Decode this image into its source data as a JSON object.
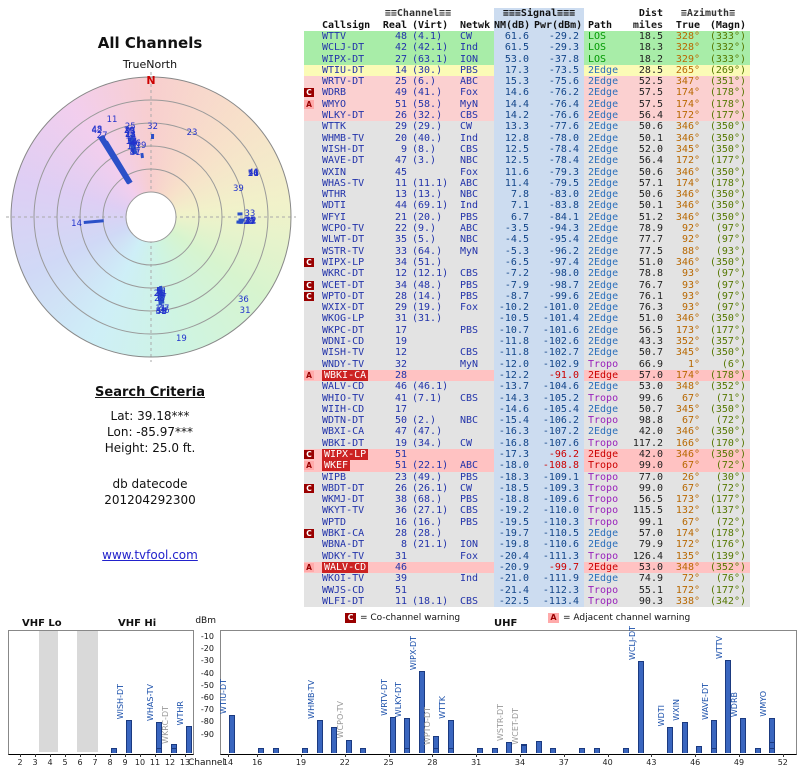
{
  "radar": {
    "title": "All Channels",
    "north_label": "TrueNorth",
    "north_marker": "N"
  },
  "search": {
    "heading": "Search Criteria",
    "lines": [
      "Lat: 39.18***",
      "Lon: -85.97***",
      "Height: 25.0 ft."
    ],
    "datecode_label": "db datecode",
    "datecode": "201204292300",
    "link": "www.tvfool.com"
  },
  "table": {
    "group_header": {
      "channel": "≡≡Channel≡≡",
      "signal": "≡≡≡Signal≡≡≡",
      "dist": "Dist",
      "azimuth": "≡Azimuth≡"
    },
    "header": {
      "callsign": "Callsign",
      "real": "Real",
      "virt": "(Virt)",
      "netwk": "Netwk",
      "nm": "NM(dB)",
      "pwr": "Pwr(dBm)",
      "path": "Path",
      "miles": "miles",
      "true": "True",
      "magn": "(Magn)"
    },
    "row_fields": [
      "warn",
      "callsign",
      "real",
      "virt",
      "netwk",
      "nm",
      "pwr",
      "path",
      "dist",
      "true_az",
      "magn",
      "tier",
      "alert"
    ],
    "rows": [
      [
        "",
        "WTTV",
        "48",
        "(4.1)",
        "CW",
        "61.6",
        "-29.2",
        "LOS",
        "18.5",
        "328°",
        "(333°)",
        "green",
        0
      ],
      [
        "",
        "WCLJ-DT",
        "42",
        "(42.1)",
        "Ind",
        "61.5",
        "-29.3",
        "LOS",
        "18.3",
        "328°",
        "(332°)",
        "green",
        0
      ],
      [
        "",
        "WIPX-DT",
        "27",
        "(63.1)",
        "ION",
        "53.0",
        "-37.8",
        "LOS",
        "18.2",
        "329°",
        "(333°)",
        "green",
        0
      ],
      [
        "",
        "WTIU-DT",
        "14",
        "(30.)",
        "PBS",
        "17.3",
        "-73.5",
        "2Edge",
        "28.5",
        "265°",
        "(269°)",
        "yellow",
        0
      ],
      [
        "",
        "WRTV-DT",
        "25",
        "(6.)",
        "ABC",
        "15.3",
        "-75.6",
        "2Edge",
        "52.5",
        "347°",
        "(351°)",
        "pink",
        0
      ],
      [
        "C",
        "WDRB",
        "49",
        "(41.)",
        "Fox",
        "14.6",
        "-76.2",
        "2Edge",
        "57.5",
        "174°",
        "(178°)",
        "pink",
        0
      ],
      [
        "A",
        "WMYO",
        "51",
        "(58.)",
        "MyN",
        "14.4",
        "-76.4",
        "2Edge",
        "57.5",
        "174°",
        "(178°)",
        "pink",
        0
      ],
      [
        "",
        "WLKY-DT",
        "26",
        "(32.)",
        "CBS",
        "14.2",
        "-76.6",
        "2Edge",
        "56.4",
        "172°",
        "(177°)",
        "pink",
        0
      ],
      [
        "",
        "WTTK",
        "29",
        "(29.)",
        "CW",
        "13.3",
        "-77.6",
        "2Edge",
        "50.6",
        "346°",
        "(350°)",
        "gray",
        0
      ],
      [
        "",
        "WHMB-TV",
        "20",
        "(40.)",
        "Ind",
        "12.8",
        "-78.0",
        "2Edge",
        "50.1",
        "346°",
        "(350°)",
        "gray",
        0
      ],
      [
        "",
        "WISH-DT",
        "9",
        "(8.)",
        "CBS",
        "12.5",
        "-78.4",
        "2Edge",
        "52.0",
        "345°",
        "(350°)",
        "gray",
        0
      ],
      [
        "",
        "WAVE-DT",
        "47",
        "(3.)",
        "NBC",
        "12.5",
        "-78.4",
        "2Edge",
        "56.4",
        "172°",
        "(177°)",
        "gray",
        0
      ],
      [
        "",
        "WXIN",
        "45",
        "",
        "Fox",
        "11.6",
        "-79.3",
        "2Edge",
        "50.6",
        "346°",
        "(350°)",
        "gray",
        0
      ],
      [
        "",
        "WHAS-TV",
        "11",
        "(11.1)",
        "ABC",
        "11.4",
        "-79.5",
        "2Edge",
        "57.1",
        "174°",
        "(178°)",
        "gray",
        0
      ],
      [
        "",
        "WTHR",
        "13",
        "(13.)",
        "NBC",
        "7.8",
        "-83.0",
        "2Edge",
        "50.6",
        "346°",
        "(350°)",
        "gray",
        0
      ],
      [
        "",
        "WDTI",
        "44",
        "(69.1)",
        "Ind",
        "7.1",
        "-83.8",
        "2Edge",
        "50.1",
        "346°",
        "(350°)",
        "gray",
        0
      ],
      [
        "",
        "WFYI",
        "21",
        "(20.)",
        "PBS",
        "6.7",
        "-84.1",
        "2Edge",
        "51.2",
        "346°",
        "(350°)",
        "gray",
        0
      ],
      [
        "",
        "WCPO-TV",
        "22",
        "(9.)",
        "ABC",
        "-3.5",
        "-94.3",
        "2Edge",
        "78.9",
        "92°",
        "(97°)",
        "gray",
        0
      ],
      [
        "",
        "WLWT-DT",
        "35",
        "(5.)",
        "NBC",
        "-4.5",
        "-95.4",
        "2Edge",
        "77.7",
        "92°",
        "(97°)",
        "gray",
        0
      ],
      [
        "",
        "WSTR-TV",
        "33",
        "(64.)",
        "MyN",
        "-5.3",
        "-96.2",
        "2Edge",
        "77.5",
        "88°",
        "(93°)",
        "gray",
        0
      ],
      [
        "C",
        "WIPX-LP",
        "34",
        "(51.)",
        "",
        "-6.5",
        "-97.4",
        "2Edge",
        "51.0",
        "346°",
        "(350°)",
        "gray",
        0
      ],
      [
        "",
        "WKRC-DT",
        "12",
        "(12.1)",
        "CBS",
        "-7.2",
        "-98.0",
        "2Edge",
        "78.8",
        "93°",
        "(97°)",
        "gray",
        0
      ],
      [
        "C",
        "WCET-DT",
        "34",
        "(48.)",
        "PBS",
        "-7.9",
        "-98.7",
        "2Edge",
        "76.7",
        "93°",
        "(97°)",
        "gray",
        0
      ],
      [
        "C",
        "WPTO-DT",
        "28",
        "(14.)",
        "PBS",
        "-8.7",
        "-99.6",
        "2Edge",
        "76.1",
        "93°",
        "(97°)",
        "gray",
        0
      ],
      [
        "",
        "WXIX-DT",
        "29",
        "(19.)",
        "Fox",
        "-10.2",
        "-101.0",
        "2Edge",
        "76.3",
        "93°",
        "(97°)",
        "gray",
        0
      ],
      [
        "",
        "WKOG-LP",
        "31",
        "(31.)",
        "",
        "-10.5",
        "-101.4",
        "2Edge",
        "51.0",
        "346°",
        "(350°)",
        "gray",
        0
      ],
      [
        "",
        "WKPC-DT",
        "17",
        "",
        "PBS",
        "-10.7",
        "-101.6",
        "2Edge",
        "56.5",
        "173°",
        "(177°)",
        "gray",
        0
      ],
      [
        "",
        "WDNI-CD",
        "19",
        "",
        "",
        "-11.8",
        "-102.6",
        "2Edge",
        "43.3",
        "352°",
        "(357°)",
        "gray",
        0
      ],
      [
        "",
        "WISH-TV",
        "12",
        "",
        "CBS",
        "-11.8",
        "-102.7",
        "2Edge",
        "50.7",
        "345°",
        "(350°)",
        "gray",
        0
      ],
      [
        "",
        "WNDY-TV",
        "32",
        "",
        "MyN",
        "-12.0",
        "-102.9",
        "Tropo",
        "66.9",
        "1°",
        "(6°)",
        "gray",
        0
      ],
      [
        "A",
        "WBKI-CA",
        "28",
        "",
        "",
        "-12.2",
        "-91.0",
        "2Edge",
        "57.0",
        "174°",
        "(178°)",
        "gray",
        1
      ],
      [
        "",
        "WALV-CD",
        "46",
        "(46.1)",
        "",
        "-13.7",
        "-104.6",
        "2Edge",
        "53.0",
        "348°",
        "(352°)",
        "gray",
        0
      ],
      [
        "",
        "WHIO-TV",
        "41",
        "(7.1)",
        "CBS",
        "-14.3",
        "-105.2",
        "Tropo",
        "99.6",
        "67°",
        "(71°)",
        "gray",
        0
      ],
      [
        "",
        "WIIH-CD",
        "17",
        "",
        "",
        "-14.6",
        "-105.4",
        "2Edge",
        "50.7",
        "345°",
        "(350°)",
        "gray",
        0
      ],
      [
        "",
        "WDTN-DT",
        "50",
        "(2.)",
        "NBC",
        "-15.4",
        "-106.2",
        "Tropo",
        "98.8",
        "67°",
        "(72°)",
        "gray",
        0
      ],
      [
        "",
        "WBXI-CA",
        "47",
        "(47.)",
        "",
        "-16.3",
        "-107.2",
        "2Edge",
        "42.0",
        "346°",
        "(350°)",
        "gray",
        0
      ],
      [
        "",
        "WBKI-DT",
        "19",
        "(34.)",
        "CW",
        "-16.8",
        "-107.6",
        "Tropo",
        "117.2",
        "166°",
        "(170°)",
        "gray",
        0
      ],
      [
        "C",
        "WIPX-LP",
        "51",
        "",
        "",
        "-17.3",
        "-96.2",
        "2Edge",
        "42.0",
        "346°",
        "(350°)",
        "gray",
        1
      ],
      [
        "A",
        "WKEF",
        "51",
        "(22.1)",
        "ABC",
        "-18.0",
        "-108.8",
        "Tropo",
        "99.0",
        "67°",
        "(72°)",
        "gray",
        1
      ],
      [
        "",
        "WIPB",
        "23",
        "(49.)",
        "PBS",
        "-18.3",
        "-109.1",
        "Tropo",
        "77.0",
        "26°",
        "(30°)",
        "gray",
        0
      ],
      [
        "C",
        "WBDT-DT",
        "26",
        "(26.1)",
        "CW",
        "-18.5",
        "-109.3",
        "Tropo",
        "99.0",
        "67°",
        "(72°)",
        "gray",
        0
      ],
      [
        "",
        "WKMJ-DT",
        "38",
        "(68.)",
        "PBS",
        "-18.8",
        "-109.6",
        "Tropo",
        "56.5",
        "173°",
        "(177°)",
        "gray",
        0
      ],
      [
        "",
        "WKYT-TV",
        "36",
        "(27.1)",
        "CBS",
        "-19.2",
        "-110.0",
        "Tropo",
        "115.5",
        "132°",
        "(137°)",
        "gray",
        0
      ],
      [
        "",
        "WPTD",
        "16",
        "(16.)",
        "PBS",
        "-19.5",
        "-110.3",
        "Tropo",
        "99.1",
        "67°",
        "(72°)",
        "gray",
        0
      ],
      [
        "C",
        "WBKI-CA",
        "28",
        "(28.)",
        "",
        "-19.7",
        "-110.5",
        "2Edge",
        "57.0",
        "174°",
        "(178°)",
        "gray",
        0
      ],
      [
        "",
        "WBNA-DT",
        "8",
        "(21.1)",
        "ION",
        "-19.8",
        "-110.6",
        "2Edge",
        "79.9",
        "172°",
        "(176°)",
        "gray",
        0
      ],
      [
        "",
        "WDKY-TV",
        "31",
        "",
        "Fox",
        "-20.4",
        "-111.3",
        "Tropo",
        "126.4",
        "135°",
        "(139°)",
        "gray",
        0
      ],
      [
        "A",
        "WALV-CD",
        "46",
        "",
        "",
        "-20.9",
        "-99.7",
        "2Edge",
        "53.0",
        "348°",
        "(352°)",
        "gray",
        1
      ],
      [
        "",
        "WKOI-TV",
        "39",
        "",
        "Ind",
        "-21.0",
        "-111.9",
        "2Edge",
        "74.9",
        "72°",
        "(76°)",
        "gray",
        0
      ],
      [
        "",
        "WWJS-CD",
        "51",
        "",
        "",
        "-21.4",
        "-112.3",
        "Tropo",
        "55.1",
        "172°",
        "(177°)",
        "gray",
        0
      ],
      [
        "",
        "WLFI-DT",
        "11",
        "(18.1)",
        "CBS",
        "-22.5",
        "-113.4",
        "Tropo",
        "90.3",
        "338°",
        "(342°)",
        "gray",
        0
      ]
    ]
  },
  "legend": {
    "c_symbol": "C",
    "c_text": "= Co-channel warning",
    "a_symbol": "A",
    "a_text": "= Adjacent channel warning"
  },
  "spectrum": {
    "dbm_label": "dBm",
    "dbm_ticks": [
      -10,
      -20,
      -30,
      -40,
      -50,
      -60,
      -70,
      -80,
      -90
    ],
    "channel_axis_label": "Channel",
    "band_vhf_lo": "VHF Lo",
    "band_vhf_hi": "VHF Hi",
    "band_uhf": "UHF",
    "vhf_ticks": [
      2,
      3,
      4,
      5,
      6,
      7,
      8,
      9,
      10,
      11,
      12,
      13
    ],
    "uhf_ticks": [
      14,
      16,
      19,
      22,
      25,
      28,
      31,
      34,
      37,
      40,
      43,
      46,
      49,
      52
    ],
    "vhf_labels": [
      [
        "WISH-DT",
        9,
        -78.4,
        0
      ],
      [
        "WHAS-TV",
        11,
        -79.5,
        0
      ],
      [
        "WKRC-DT",
        12,
        -98.0,
        1
      ],
      [
        "WTHR",
        13,
        -83.0,
        0
      ]
    ],
    "uhf_labels": [
      [
        "WTIU-DT",
        14,
        -73.5,
        0
      ],
      [
        "WHMB-TV",
        20,
        -78.0,
        0
      ],
      [
        "WCPO-TV",
        22,
        -94.3,
        1
      ],
      [
        "WRTV-DT",
        25,
        -75.6,
        0
      ],
      [
        "WLKY-DT",
        26,
        -76.6,
        0
      ],
      [
        "WIPX-DT",
        27,
        -37.8,
        0
      ],
      [
        "WPTO-DT",
        28,
        -99.6,
        1
      ],
      [
        "WTTK",
        29,
        -77.6,
        0
      ],
      [
        "WSTR-DT",
        33,
        -96.2,
        1
      ],
      [
        "WCET-DT",
        34,
        -98.7,
        1
      ],
      [
        "WCLJ-DT",
        42,
        -29.3,
        0
      ],
      [
        "WDTI",
        44,
        -83.8,
        0
      ],
      [
        "WXIN",
        45,
        -79.3,
        0
      ],
      [
        "WAVE-DT",
        47,
        -78.4,
        0
      ],
      [
        "WTTV",
        48,
        -29.2,
        0
      ],
      [
        "WDRB",
        49,
        -76.2,
        0
      ],
      [
        "WMYO",
        51,
        -76.4,
        0
      ]
    ]
  }
}
